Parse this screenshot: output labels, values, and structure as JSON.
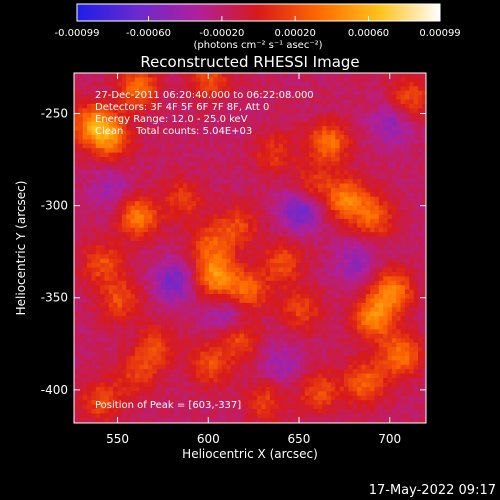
{
  "colorbar": {
    "ticks": [
      "-0.00099",
      "-0.00060",
      "-0.00020",
      "0.00020",
      "0.00060",
      "0.00099"
    ],
    "tick_values": [
      -0.00099,
      -0.0006,
      -0.0002,
      0.0002,
      0.0006,
      0.00099
    ],
    "range": [
      -0.00099,
      0.00099
    ],
    "unit_label": "(photons cm⁻² s⁻¹ asec⁻²)",
    "colors": [
      "#1e1ee6",
      "#6a2ad0",
      "#b0209a",
      "#d81a1a",
      "#ff6a00",
      "#ffc21a",
      "#ffffff"
    ]
  },
  "chart_data": {
    "type": "heatmap",
    "title": "Reconstructed RHESSI Image",
    "xlabel": "Heliocentric X (arcsec)",
    "ylabel": "Heliocentric Y (arcsec)",
    "xlim": [
      526,
      720
    ],
    "ylim": [
      -418,
      -228
    ],
    "xticks": [
      550,
      600,
      650,
      700
    ],
    "yticks": [
      -250,
      -300,
      -350,
      -400
    ],
    "annotations": [
      "27-Dec-2011 06:20:40.000 to 06:22:08.000",
      "Detectors: 3F 4F 5F 6F 7F 8F, Att 0",
      "Energy Range: 12.0 - 25.0 keV",
      "Clean    Total counts: 5.04E+03"
    ],
    "peak_label": "Position of Peak = [603,-337]",
    "peak_position": [
      603,
      -337
    ],
    "bright_regions": [
      {
        "x": 535,
        "y": -255,
        "level": 0.95
      },
      {
        "x": 560,
        "y": -235,
        "level": 0.8
      },
      {
        "x": 545,
        "y": -262,
        "level": 0.85
      },
      {
        "x": 600,
        "y": -230,
        "level": 0.6
      },
      {
        "x": 665,
        "y": -265,
        "level": 0.85
      },
      {
        "x": 675,
        "y": -295,
        "level": 0.9
      },
      {
        "x": 690,
        "y": -305,
        "level": 0.7
      },
      {
        "x": 655,
        "y": -290,
        "level": 0.6
      },
      {
        "x": 560,
        "y": -305,
        "level": 0.9
      },
      {
        "x": 585,
        "y": -295,
        "level": 0.5
      },
      {
        "x": 600,
        "y": -320,
        "level": 0.6
      },
      {
        "x": 603,
        "y": -337,
        "level": 1.0
      },
      {
        "x": 620,
        "y": -345,
        "level": 0.8
      },
      {
        "x": 615,
        "y": -310,
        "level": 0.55
      },
      {
        "x": 640,
        "y": -330,
        "level": 0.6
      },
      {
        "x": 650,
        "y": -355,
        "level": 0.55
      },
      {
        "x": 690,
        "y": -360,
        "level": 0.95
      },
      {
        "x": 700,
        "y": -345,
        "level": 0.9
      },
      {
        "x": 705,
        "y": -380,
        "level": 0.85
      },
      {
        "x": 685,
        "y": -395,
        "level": 0.75
      },
      {
        "x": 660,
        "y": -400,
        "level": 0.6
      },
      {
        "x": 615,
        "y": -370,
        "level": 0.7
      },
      {
        "x": 600,
        "y": -385,
        "level": 0.6
      },
      {
        "x": 570,
        "y": -375,
        "level": 0.55
      },
      {
        "x": 550,
        "y": -350,
        "level": 0.6
      },
      {
        "x": 540,
        "y": -330,
        "level": 0.6
      },
      {
        "x": 560,
        "y": -390,
        "level": 0.5
      },
      {
        "x": 540,
        "y": -405,
        "level": 0.6
      },
      {
        "x": 630,
        "y": -405,
        "level": 0.5
      },
      {
        "x": 710,
        "y": -240,
        "level": 0.6
      },
      {
        "x": 635,
        "y": -270,
        "level": 0.45
      }
    ],
    "dark_regions": [
      {
        "x": 650,
        "y": -300,
        "level": -0.9
      },
      {
        "x": 610,
        "y": -360,
        "level": -0.6
      },
      {
        "x": 700,
        "y": -255,
        "level": -0.5
      },
      {
        "x": 580,
        "y": -340,
        "level": -0.7
      },
      {
        "x": 545,
        "y": -290,
        "level": -0.4
      },
      {
        "x": 680,
        "y": -330,
        "level": -0.5
      },
      {
        "x": 640,
        "y": -385,
        "level": -0.4
      }
    ]
  },
  "footer": {
    "timestamp": "17-May-2022 09:17"
  }
}
